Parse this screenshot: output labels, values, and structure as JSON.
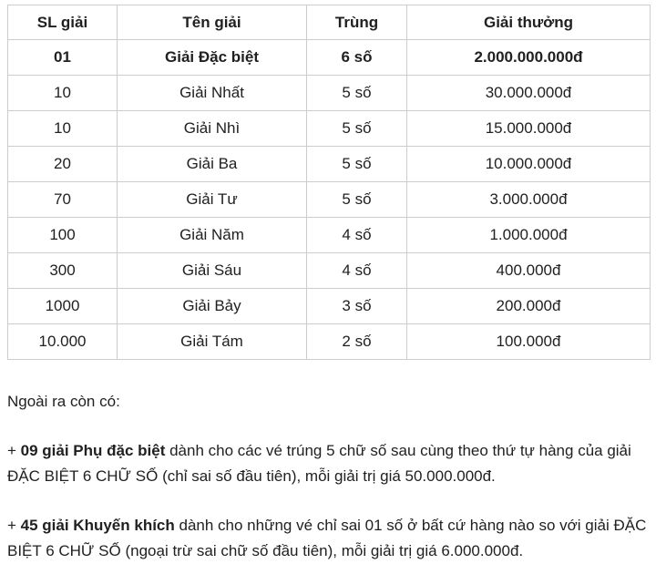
{
  "table": {
    "headers": [
      "SL giải",
      "Tên giải",
      "Trùng",
      "Giải thưởng"
    ],
    "rows": [
      [
        "01",
        "Giải Đặc biệt",
        "6 số",
        "2.000.000.000đ"
      ],
      [
        "10",
        "Giải Nhất",
        "5 số",
        "30.000.000đ"
      ],
      [
        "10",
        "Giải Nhì",
        "5 số",
        "15.000.000đ"
      ],
      [
        "20",
        "Giải Ba",
        "5 số",
        "10.000.000đ"
      ],
      [
        "70",
        "Giải Tư",
        "5 số",
        "3.000.000đ"
      ],
      [
        "100",
        "Giải Năm",
        "4 số",
        "1.000.000đ"
      ],
      [
        "300",
        "Giải Sáu",
        "4 số",
        "400.000đ"
      ],
      [
        "1000",
        "Giải Bảy",
        "3 số",
        "200.000đ"
      ],
      [
        "10.000",
        "Giải Tám",
        "2 số",
        "100.000đ"
      ]
    ]
  },
  "notes": {
    "intro": "Ngoài ra còn có:",
    "note1": {
      "prefix": "+ ",
      "bold": "09 giải Phụ đặc biệt",
      "rest": " dành cho các vé trúng 5 chữ số sau cùng theo thứ tự hàng của giải ĐẶC BIỆT 6 CHỮ SỐ (chỉ sai số đầu tiên), mỗi giải trị giá 50.000.000đ."
    },
    "note2": {
      "prefix": "+ ",
      "bold": "45 giải Khuyến khích",
      "rest": " dành cho những vé chỉ sai 01 số ở bất cứ hàng nào so với giải ĐẶC BIỆT 6 CHỮ SỐ (ngoại trừ sai chữ số đầu tiên), mỗi giải trị giá 6.000.000đ."
    }
  },
  "colors": {
    "text": "#212121",
    "border": "#cccccc",
    "background": "#ffffff"
  }
}
